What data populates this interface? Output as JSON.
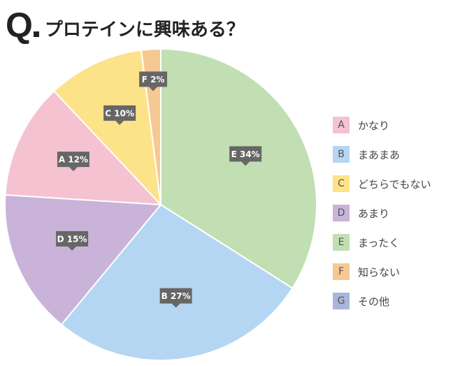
{
  "heading": {
    "q": "Q",
    "text": "プロテインに興味ある？"
  },
  "chart_data": {
    "type": "pie",
    "title": "プロテインに興味ある？",
    "start_angle_deg": 0,
    "direction": "clockwise",
    "slices": [
      {
        "key": "E",
        "label": "まったく",
        "value": 34,
        "data_label": "E 34%",
        "color": "#c1dfb2"
      },
      {
        "key": "B",
        "label": "まあまあ",
        "value": 27,
        "data_label": "B 27%",
        "color": "#b5d6f2"
      },
      {
        "key": "D",
        "label": "あまり",
        "value": 15,
        "data_label": "D 15%",
        "color": "#c9b3d9"
      },
      {
        "key": "A",
        "label": "かなり",
        "value": 12,
        "data_label": "A 12%",
        "color": "#f4c2d0"
      },
      {
        "key": "C",
        "label": "どちらでもない",
        "value": 10,
        "data_label": "C 10%",
        "color": "#fce38a"
      },
      {
        "key": "F",
        "label": "知らない",
        "value": 2,
        "data_label": "F 2%",
        "color": "#f6c894"
      }
    ],
    "legend": {
      "position": "right",
      "items": [
        {
          "key": "A",
          "label": "かなり",
          "color": "#f4c2d0"
        },
        {
          "key": "B",
          "label": "まあまあ",
          "color": "#b5d6f2"
        },
        {
          "key": "C",
          "label": "どちらでもない",
          "color": "#fce38a"
        },
        {
          "key": "D",
          "label": "あまり",
          "color": "#c9b3d9"
        },
        {
          "key": "E",
          "label": "まったく",
          "color": "#c1dfb2"
        },
        {
          "key": "F",
          "label": "知らない",
          "color": "#f6c894"
        },
        {
          "key": "G",
          "label": "その他",
          "color": "#a9b6d9"
        }
      ]
    }
  }
}
